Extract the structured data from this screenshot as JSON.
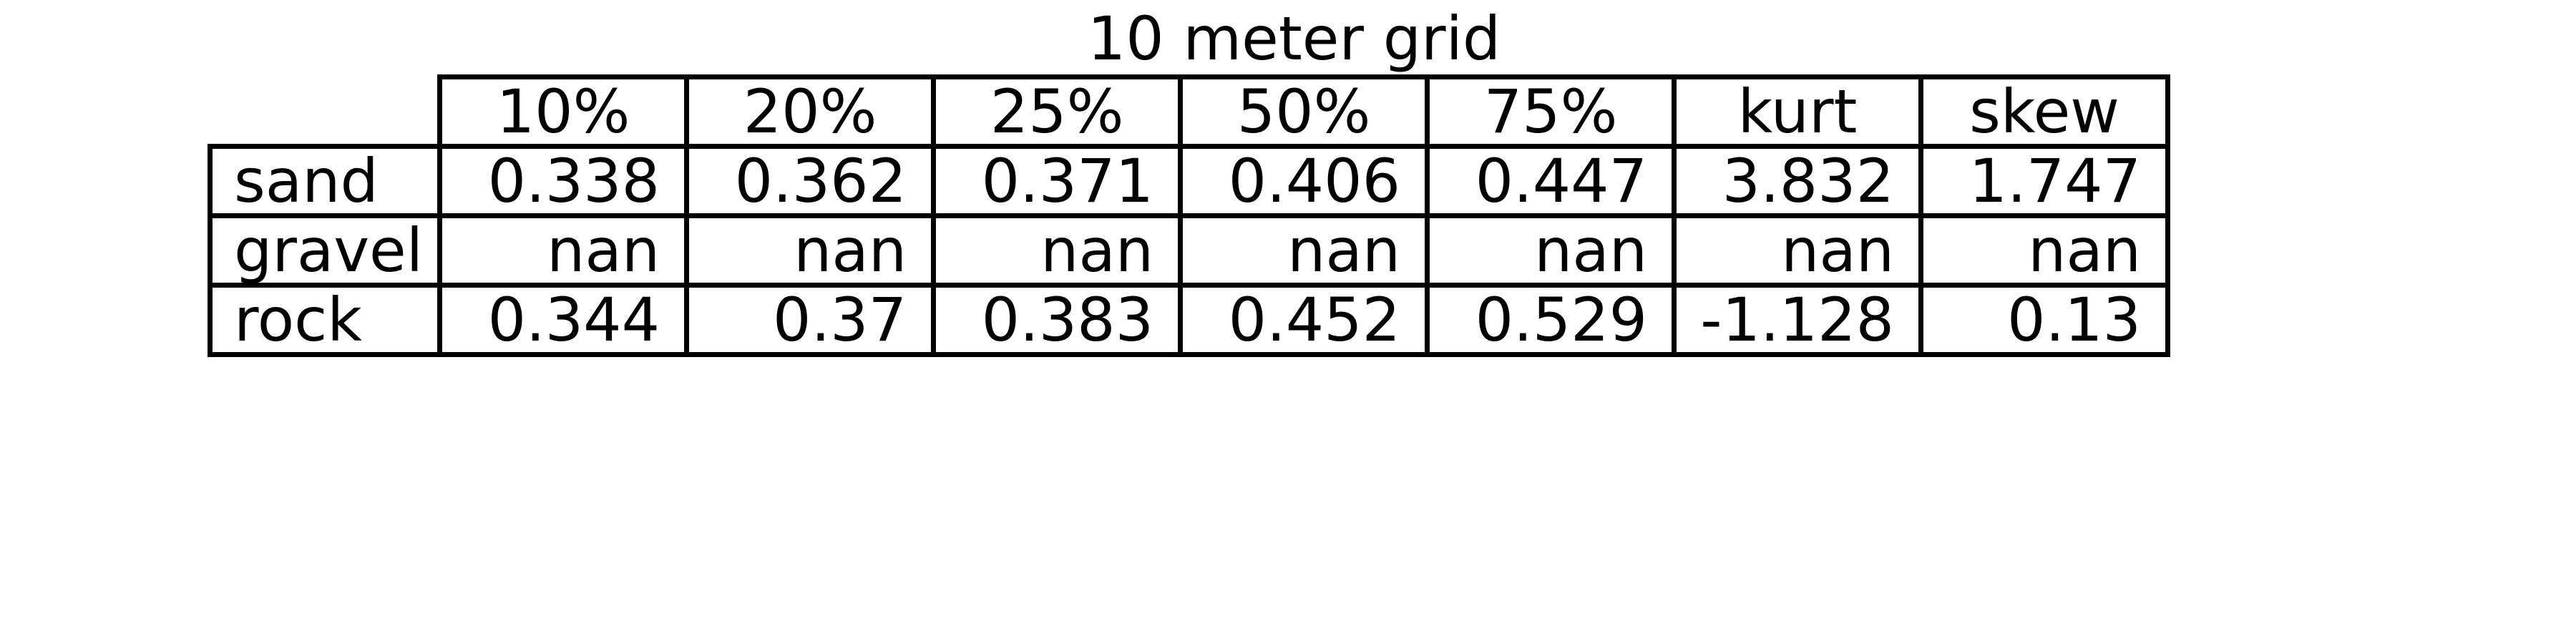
{
  "chart_data": {
    "type": "table",
    "title": "10 meter grid",
    "columns": [
      "10%",
      "20%",
      "25%",
      "50%",
      "75%",
      "kurt",
      "skew"
    ],
    "rows": [
      {
        "label": "sand",
        "values": [
          "0.338",
          "0.362",
          "0.371",
          "0.406",
          "0.447",
          "3.832",
          "1.747"
        ]
      },
      {
        "label": "gravel",
        "values": [
          "nan",
          "nan",
          "nan",
          "nan",
          "nan",
          "nan",
          "nan"
        ]
      },
      {
        "label": "rock",
        "values": [
          "0.344",
          "0.37",
          "0.383",
          "0.452",
          "0.529",
          "-1.128",
          "0.13"
        ]
      }
    ]
  }
}
